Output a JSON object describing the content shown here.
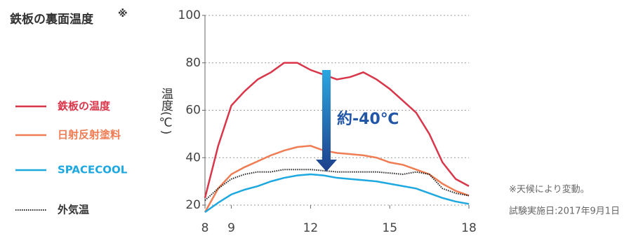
{
  "chart_data": {
    "type": "line",
    "title": "鉄板の裏面温度",
    "title_note": "※",
    "y_label": "温度(℃)",
    "annotation": "約-40℃",
    "notes": [
      "※天候により変動。",
      "試験実施日:2017年9月1日"
    ],
    "x": [
      8,
      8.5,
      9,
      9.5,
      10,
      10.5,
      11,
      11.5,
      12,
      12.5,
      13,
      13.5,
      14,
      14.5,
      15,
      15.5,
      16,
      16.5,
      17,
      17.5,
      18
    ],
    "xlim": [
      8,
      18
    ],
    "xticks": [
      8,
      9,
      12,
      15,
      18
    ],
    "ylim": [
      20,
      100
    ],
    "yticks": [
      20,
      40,
      60,
      80,
      100
    ],
    "grid": true,
    "series": [
      {
        "name": "鉄板の温度",
        "color": "#d9364a",
        "style": "solid",
        "values": [
          23,
          45,
          62,
          68,
          73,
          76,
          80,
          80,
          77,
          75,
          73,
          74,
          76,
          73,
          69,
          64,
          59,
          50,
          38,
          31,
          28
        ]
      },
      {
        "name": "日射反射塗料",
        "color": "#ef7c52",
        "style": "solid",
        "values": [
          17,
          27,
          33,
          36,
          38.5,
          41,
          43,
          44.5,
          45,
          43,
          42,
          41.5,
          41,
          40,
          38,
          37,
          35,
          33,
          29,
          26,
          24
        ]
      },
      {
        "name": "SPACECOOL",
        "color": "#1ea8e0",
        "style": "solid",
        "values": [
          17,
          21,
          24.5,
          26.5,
          28,
          30,
          31.5,
          32.5,
          33,
          32.5,
          31.5,
          31,
          30.5,
          30,
          29,
          28,
          27,
          25,
          23,
          21.5,
          20.5
        ]
      },
      {
        "name": "外気温",
        "color": "#222222",
        "style": "dotted",
        "values": [
          22,
          27,
          31,
          33,
          34,
          34,
          35,
          35,
          35,
          34.5,
          34,
          34,
          34,
          34,
          33.5,
          33,
          34,
          33,
          27,
          25,
          24
        ]
      }
    ]
  }
}
